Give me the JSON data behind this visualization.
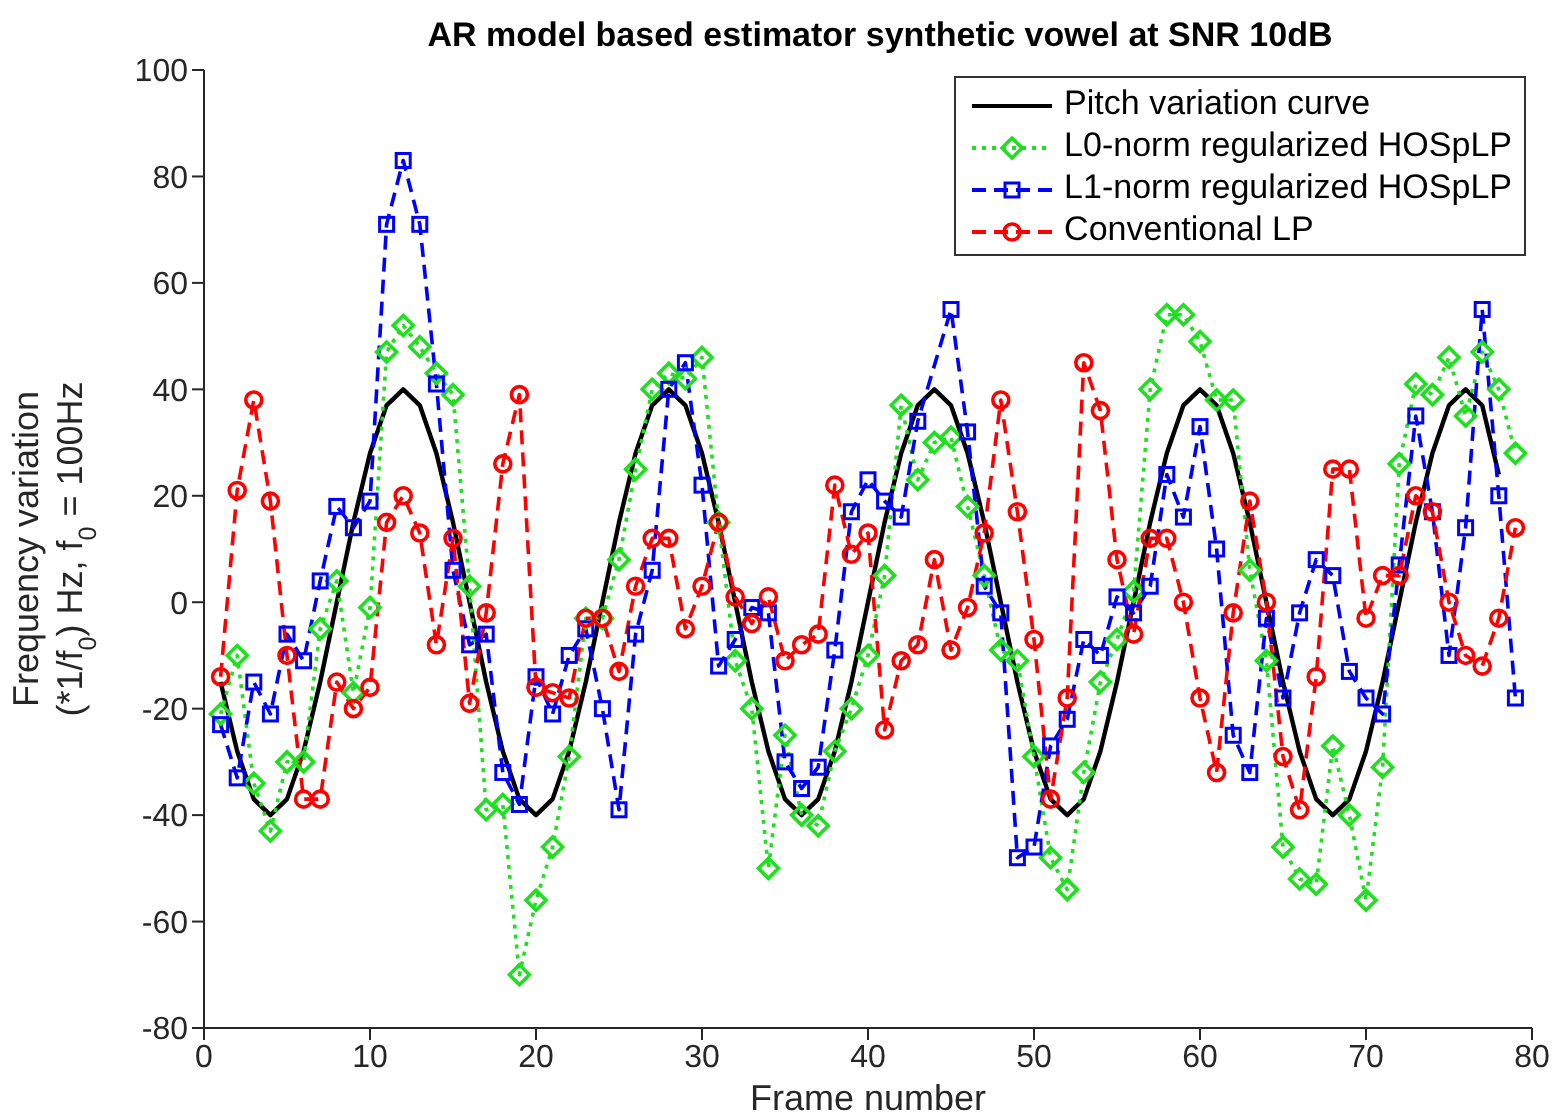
{
  "chart_data": {
    "type": "line",
    "title": "AR model based estimator synthetic vowel at SNR 10dB",
    "xlabel": "Frame number",
    "ylabel": "Frequency variation\n(*1/f$_{0}$) Hz, f$_{0}$ = 100Hz",
    "xlim": [
      0,
      80
    ],
    "xticks": [
      0,
      10,
      20,
      30,
      40,
      50,
      60,
      70,
      80
    ],
    "ylim": [
      -80,
      100
    ],
    "yticks": [
      -80,
      -60,
      -40,
      -20,
      0,
      20,
      40,
      60,
      80,
      100
    ],
    "legend": "top right",
    "x": [
      1,
      2,
      3,
      4,
      5,
      6,
      7,
      8,
      9,
      10,
      11,
      12,
      13,
      14,
      15,
      16,
      17,
      18,
      19,
      20,
      21,
      22,
      23,
      24,
      25,
      26,
      27,
      28,
      29,
      30,
      31,
      32,
      33,
      34,
      35,
      36,
      37,
      38,
      39,
      40,
      41,
      42,
      43,
      44,
      45,
      46,
      47,
      48,
      49,
      50,
      51,
      52,
      53,
      54,
      55,
      56,
      57,
      58,
      59,
      60,
      61,
      62,
      63,
      64,
      65,
      66,
      67,
      68,
      69,
      70,
      71,
      72,
      73,
      74,
      75,
      76,
      77,
      78,
      79
    ],
    "series": [
      {
        "name": "Pitch variation curve",
        "color": "#000000",
        "marker": "none",
        "line_style": "solid",
        "x": [
          1,
          2,
          3,
          4,
          5,
          6,
          7,
          8,
          9,
          10,
          11,
          12,
          13,
          14,
          15,
          16,
          17,
          18,
          19,
          20,
          21,
          22,
          23,
          24,
          25,
          26,
          27,
          28,
          29,
          30,
          31,
          32,
          33,
          34,
          35,
          36,
          37,
          38,
          39,
          40,
          41,
          42,
          43,
          44,
          45,
          46,
          47,
          48,
          49,
          50,
          51,
          52,
          53,
          54,
          55,
          56,
          57,
          58,
          59,
          60,
          61,
          62,
          63,
          64,
          65,
          66,
          67,
          68,
          69,
          70,
          71,
          72,
          73,
          74,
          75,
          76,
          77,
          78
        ],
        "values": [
          -15,
          -28,
          -37,
          -40,
          -37,
          -28,
          -15,
          0,
          15,
          28,
          37,
          40,
          37,
          28,
          15,
          0,
          -15,
          -28,
          -37,
          -40,
          -37,
          -28,
          -15,
          0,
          15,
          28,
          37,
          40,
          37,
          28,
          15,
          0,
          -15,
          -28,
          -37,
          -40,
          -37,
          -28,
          -15,
          0,
          15,
          28,
          37,
          40,
          37,
          28,
          15,
          0,
          -15,
          -28,
          -37,
          -40,
          -37,
          -28,
          -15,
          0,
          15,
          28,
          37,
          40,
          37,
          28,
          15,
          0,
          -15,
          -28,
          -37,
          -40,
          -37,
          -28,
          -15,
          0,
          15,
          28,
          37,
          40,
          37,
          24
        ]
      },
      {
        "name": "L0-norm regularized HOSpLP",
        "color": "#1ee01e",
        "marker": "diamond",
        "line_style": "dotted",
        "values": [
          -21,
          -10,
          -34,
          -43,
          -30,
          -30,
          -5,
          4,
          -17,
          -1,
          47,
          52,
          48,
          43,
          39,
          3,
          -39,
          -38,
          -70,
          -56,
          -46,
          -29,
          -3,
          -3,
          8,
          25,
          40,
          43,
          42,
          46,
          15,
          -11,
          -20,
          -50,
          -25,
          -40,
          -42,
          -28,
          -20,
          -10,
          5,
          37,
          23,
          30,
          31,
          18,
          5,
          -9,
          -11,
          -29,
          -48,
          -54,
          -32,
          -15,
          -7,
          2,
          40,
          54,
          54,
          49,
          38,
          38,
          6,
          -11,
          -46,
          -52,
          -53,
          -27,
          -40,
          -56,
          -31,
          26,
          41,
          39,
          46,
          35,
          47,
          40,
          28
        ]
      },
      {
        "name": "L1-norm regularized HOSpLP",
        "color": "#0000ff",
        "marker": "square",
        "line_style": "dashed",
        "values": [
          -23,
          -33,
          -15,
          -21,
          -6,
          -11,
          4,
          18,
          14,
          19,
          71,
          83,
          71,
          41,
          6,
          -8,
          -6,
          -32,
          -38,
          -14,
          -21,
          -10,
          -5,
          -20,
          -39,
          -6,
          6,
          40,
          45,
          22,
          -12,
          -7,
          -1,
          -2,
          -30,
          -35,
          -31,
          -9,
          17,
          23,
          19,
          16,
          34,
          null,
          55,
          32,
          3,
          -2,
          -48,
          -46,
          -27,
          -22,
          -7,
          -10,
          1,
          -2,
          3,
          24,
          16,
          33,
          10,
          -25,
          -32,
          -3,
          -18,
          -2,
          8,
          5,
          -13,
          -18,
          -21,
          7,
          35,
          17,
          -10,
          14,
          55,
          20,
          -18
        ]
      },
      {
        "name": "Conventional LP",
        "color": "#ff0000",
        "marker": "circle",
        "line_style": "dashed",
        "values": [
          -14,
          21,
          38,
          19,
          -10,
          -37,
          -37,
          -15,
          -20,
          -16,
          15,
          20,
          13,
          -8,
          12,
          -19,
          -2,
          26,
          39,
          -16,
          -17,
          -18,
          -3,
          -3,
          -13,
          3,
          12,
          12,
          -5,
          3,
          15,
          1,
          -4,
          1,
          -11,
          -8,
          -6,
          22,
          9,
          13,
          -24,
          -11,
          -8,
          8,
          -9,
          -1,
          13,
          38,
          17,
          -7,
          -37,
          -18,
          45,
          36,
          8,
          -6,
          12,
          12,
          0,
          -18,
          -32,
          -2,
          19,
          0,
          -29,
          -39,
          -14,
          25,
          25,
          -3,
          5,
          5,
          20,
          17,
          0,
          -10,
          -12,
          -3,
          14
        ]
      }
    ]
  }
}
